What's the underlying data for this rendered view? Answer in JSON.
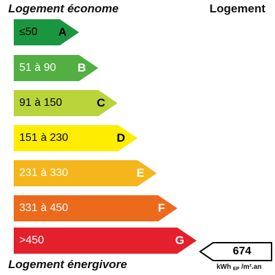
{
  "header": {
    "left": "Logement économe",
    "right": "Logement"
  },
  "footer": {
    "left": "Logement énergivore"
  },
  "classes": [
    {
      "letter": "A",
      "range": "≤50",
      "color": "#1a9641",
      "text_color": "#000000"
    },
    {
      "letter": "B",
      "range": "51 à 90",
      "color": "#52b043",
      "text_color": "#ffffff"
    },
    {
      "letter": "C",
      "range": "91 à 150",
      "color": "#b8d43a",
      "text_color": "#000000"
    },
    {
      "letter": "D",
      "range": "151 à 230",
      "color": "#ffed00",
      "text_color": "#000000"
    },
    {
      "letter": "E",
      "range": "231 à 330",
      "color": "#f4b61b",
      "text_color": "#ffffff"
    },
    {
      "letter": "F",
      "range": "331 à 450",
      "color": "#eb6a1c",
      "text_color": "#ffffff"
    },
    {
      "letter": "G",
      "range": ">450",
      "color": "#e3202b",
      "text_color": "#ffffff"
    }
  ],
  "indicator": {
    "value": "674",
    "class": "G"
  },
  "unit": {
    "main": "kWh",
    "sub": "EP",
    "rest": "/m².an"
  }
}
